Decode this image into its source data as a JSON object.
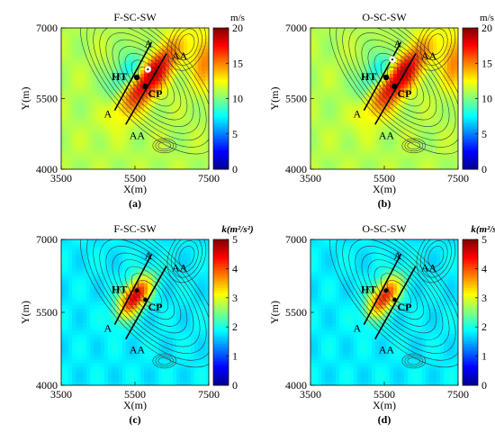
{
  "figure": {
    "background": "#ffffff",
    "colormap": [
      "#00008f",
      "#0000ff",
      "#0080ff",
      "#00ffff",
      "#80ff80",
      "#ffff00",
      "#ff8000",
      "#ff0000",
      "#800000"
    ],
    "contour_color": "#3a3a3a",
    "line_color": "#000000"
  },
  "chart_data": [
    {
      "type": "heatmap",
      "title": "F-SC-SW",
      "panel_label": "(a)",
      "colorbar_label": "m/s",
      "xlabel": "X(m)",
      "ylabel": "Y(m)",
      "xlim": [
        3500,
        7500
      ],
      "ylim": [
        4000,
        7000
      ],
      "xticks": [
        "3500",
        "5500",
        "7500"
      ],
      "yticks": [
        "4000",
        "5500",
        "7000"
      ],
      "colorbar_range": [
        0,
        20
      ],
      "colorbar_ticks": [
        "0",
        "5",
        "10",
        "15",
        "20"
      ],
      "annotations": [
        "A",
        "A",
        "AA",
        "AA",
        "HT",
        "CP"
      ],
      "points": [
        {
          "label": "HT",
          "x": 5550,
          "y": 5950
        },
        {
          "label": "CP",
          "x": 5780,
          "y": 5760
        }
      ],
      "lines": [
        {
          "label": "A",
          "x": [
            4950,
            5950
          ],
          "y": [
            5250,
            6700
          ]
        },
        {
          "label": "AA",
          "x": [
            5250,
            6350
          ],
          "y": [
            4950,
            6450
          ]
        }
      ],
      "field": {
        "base": 11,
        "hill_peak": 19.5,
        "lee_min": 6
      }
    },
    {
      "type": "heatmap",
      "title": "O-SC-SW",
      "panel_label": "(b)",
      "colorbar_label": "m/s",
      "xlabel": "X(m)",
      "ylabel": "Y(m)",
      "xlim": [
        3500,
        7500
      ],
      "ylim": [
        4000,
        7000
      ],
      "xticks": [
        "3500",
        "5500",
        "7500"
      ],
      "yticks": [
        "4000",
        "5500",
        "7000"
      ],
      "colorbar_range": [
        0,
        20
      ],
      "colorbar_ticks": [
        "0",
        "5",
        "10",
        "15",
        "20"
      ],
      "annotations": [
        "A",
        "A",
        "AA",
        "AA",
        "HT",
        "CP"
      ],
      "points": [
        {
          "label": "HT",
          "x": 5550,
          "y": 5950
        },
        {
          "label": "CP",
          "x": 5780,
          "y": 5760
        }
      ],
      "lines": [
        {
          "label": "A",
          "x": [
            4950,
            5950
          ],
          "y": [
            5250,
            6700
          ]
        },
        {
          "label": "AA",
          "x": [
            5250,
            6350
          ],
          "y": [
            4950,
            6450
          ]
        }
      ],
      "field": {
        "base": 11,
        "hill_peak": 19.5,
        "lee_min": 6
      }
    },
    {
      "type": "heatmap",
      "title": "F-SC-SW",
      "panel_label": "(c)",
      "colorbar_label": "k(m²/s²)",
      "xlabel": "X(m)",
      "ylabel": "Y(m)",
      "xlim": [
        3500,
        7500
      ],
      "ylim": [
        4000,
        7000
      ],
      "xticks": [
        "3500",
        "5500",
        "7500"
      ],
      "yticks": [
        "4000",
        "5500",
        "7000"
      ],
      "colorbar_range": [
        0,
        5
      ],
      "colorbar_ticks": [
        "0",
        "1",
        "2",
        "3",
        "4",
        "5"
      ],
      "annotations": [
        "A",
        "A",
        "AA",
        "AA",
        "HT",
        "CP"
      ],
      "points": [
        {
          "label": "HT",
          "x": 5550,
          "y": 5950
        },
        {
          "label": "CP",
          "x": 5780,
          "y": 5760
        }
      ],
      "lines": [
        {
          "label": "A",
          "x": [
            4950,
            5950
          ],
          "y": [
            5250,
            6700
          ]
        },
        {
          "label": "AA",
          "x": [
            5250,
            6350
          ],
          "y": [
            4950,
            6450
          ]
        }
      ],
      "field": {
        "base": 1.8,
        "wake_peak": 4.6
      }
    },
    {
      "type": "heatmap",
      "title": "O-SC-SW",
      "panel_label": "(d)",
      "colorbar_label": "k(m²/s²)",
      "xlabel": "X(m)",
      "ylabel": "Y(m)",
      "xlim": [
        3500,
        7500
      ],
      "ylim": [
        4000,
        7000
      ],
      "xticks": [
        "3500",
        "5500",
        "7500"
      ],
      "yticks": [
        "4000",
        "5500",
        "7000"
      ],
      "colorbar_range": [
        0,
        5
      ],
      "colorbar_ticks": [
        "0",
        "1",
        "2",
        "3",
        "4",
        "5"
      ],
      "annotations": [
        "A",
        "A",
        "AA",
        "AA",
        "HT",
        "CP"
      ],
      "points": [
        {
          "label": "HT",
          "x": 5550,
          "y": 5950
        },
        {
          "label": "CP",
          "x": 5780,
          "y": 5760
        }
      ],
      "lines": [
        {
          "label": "A",
          "x": [
            4950,
            5950
          ],
          "y": [
            5250,
            6700
          ]
        },
        {
          "label": "AA",
          "x": [
            5250,
            6350
          ],
          "y": [
            4950,
            6450
          ]
        }
      ],
      "field": {
        "base": 1.8,
        "wake_peak": 4.3
      }
    }
  ]
}
